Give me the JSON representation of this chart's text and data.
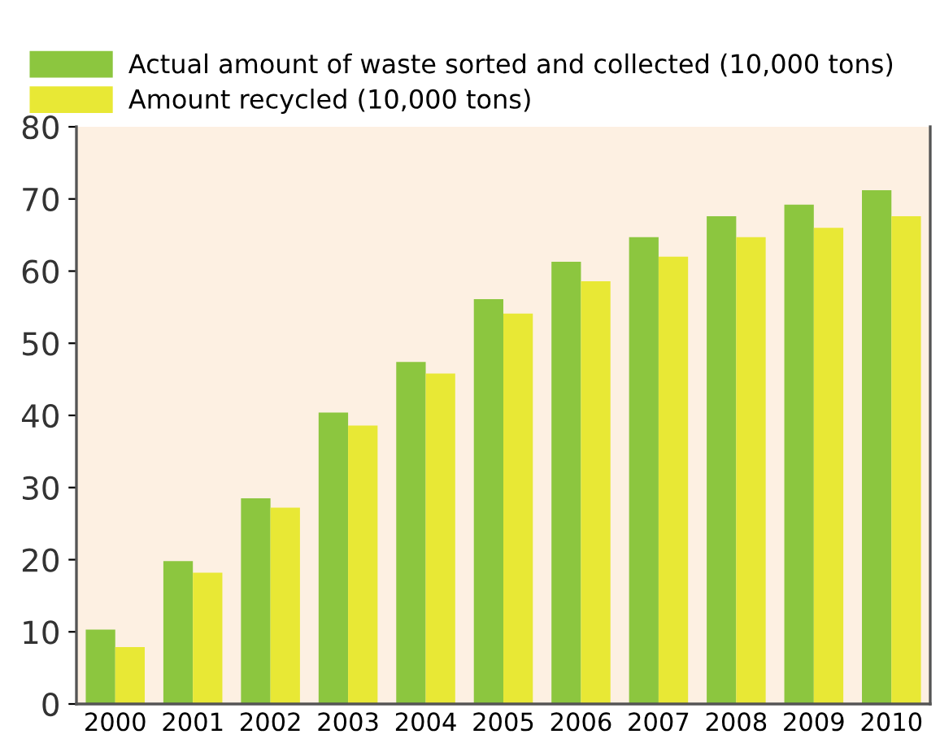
{
  "chart_data": {
    "type": "bar",
    "categories": [
      "2000",
      "2001",
      "2002",
      "2003",
      "2004",
      "2005",
      "2006",
      "2007",
      "2008",
      "2009",
      "2010"
    ],
    "series": [
      {
        "name": "Actual amount of waste sorted and collected (10,000 tons)",
        "color": "#8cc63f",
        "values": [
          10.3,
          19.8,
          28.5,
          40.4,
          47.4,
          56.1,
          61.3,
          64.7,
          67.6,
          69.2,
          71.2
        ]
      },
      {
        "name": "Amount recycled (10,000 tons)",
        "color": "#e8e835",
        "values": [
          7.9,
          18.2,
          27.2,
          38.6,
          45.8,
          54.1,
          58.6,
          62.0,
          64.7,
          66.0,
          67.6
        ]
      }
    ],
    "ylim": [
      0,
      80
    ],
    "yticks": [
      0,
      10,
      20,
      30,
      40,
      50,
      60,
      70,
      80
    ],
    "grid": false,
    "legend": "top left"
  }
}
